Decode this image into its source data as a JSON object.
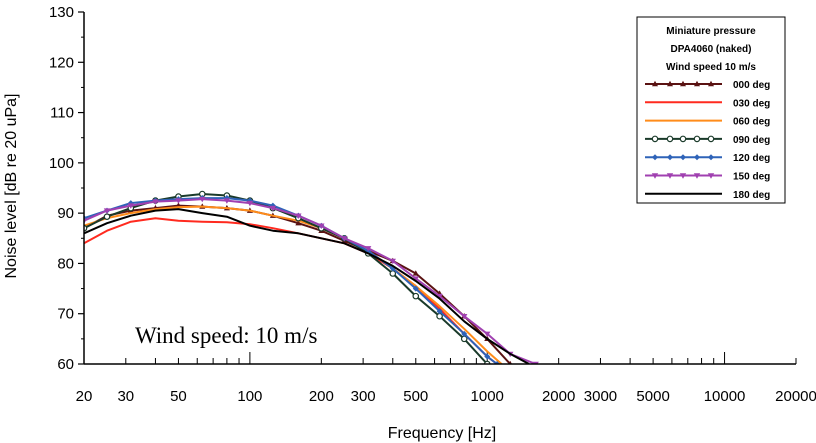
{
  "chart_data": {
    "type": "line",
    "title": "",
    "xlabel": "Frequency [Hz]",
    "ylabel": "Noise level [dB re 20 uPa]",
    "x_scale": "log",
    "xlim": [
      20,
      20000
    ],
    "ylim": [
      60,
      130
    ],
    "x_ticks": [
      20,
      30,
      50,
      100,
      200,
      300,
      500,
      1000,
      2000,
      3000,
      5000,
      10000,
      20000
    ],
    "x_tick_labels": [
      "20",
      "30",
      "50",
      "100",
      "200",
      "300",
      "500",
      "1000",
      "2000",
      "3000",
      "5000",
      "10000",
      "20000"
    ],
    "y_ticks": [
      60,
      70,
      80,
      90,
      100,
      110,
      120,
      130
    ],
    "y_tick_labels": [
      "60",
      "70",
      "80",
      "90",
      "100",
      "110",
      "120",
      "130"
    ],
    "grid": false,
    "legend": {
      "placement": "top-right",
      "title_lines": [
        "Miniature pressure",
        "DPA4060 (naked)",
        "Wind speed 10 m/s"
      ]
    },
    "annotation": "Wind speed: 10 m/s",
    "series": [
      {
        "name": "000 deg",
        "color": "#5a1212",
        "marker": "triangle",
        "x": [
          20,
          25,
          31.5,
          40,
          50,
          63,
          80,
          100,
          125,
          160,
          200,
          250,
          315,
          400,
          500,
          630,
          800,
          1000,
          1250
        ],
        "y": [
          87,
          89.5,
          90.5,
          91,
          91.5,
          91.3,
          91,
          90.5,
          89.5,
          88,
          86.5,
          84.5,
          82.5,
          80.5,
          78,
          74,
          69.5,
          65,
          60
        ]
      },
      {
        "name": "030 deg",
        "color": "#ff2a1f",
        "marker": "none",
        "x": [
          20,
          25,
          31.5,
          40,
          50,
          63,
          80,
          100,
          125,
          160,
          200,
          250,
          315,
          400,
          500,
          630,
          800,
          1000,
          1100
        ],
        "y": [
          84,
          86.5,
          88.3,
          89,
          88.5,
          88.3,
          88.2,
          87.8,
          87,
          86,
          85,
          84,
          82,
          79,
          75.5,
          71,
          66,
          61.5,
          60
        ]
      },
      {
        "name": "060 deg",
        "color": "#ff8c1a",
        "marker": "none",
        "x": [
          20,
          25,
          31.5,
          40,
          50,
          63,
          80,
          100,
          125,
          160,
          200,
          250,
          315,
          400,
          500,
          630,
          800,
          1000,
          1150
        ],
        "y": [
          87.5,
          89,
          90,
          90.8,
          91.2,
          91.3,
          91,
          90.5,
          89.5,
          88.5,
          87,
          85,
          82.5,
          79,
          75.5,
          71.5,
          67,
          62.5,
          60
        ]
      },
      {
        "name": "090 deg",
        "color": "#1a3a2a",
        "marker": "circle",
        "x": [
          20,
          25,
          31.5,
          40,
          50,
          63,
          80,
          100,
          125,
          160,
          200,
          250,
          315,
          400,
          500,
          630,
          800,
          1000
        ],
        "y": [
          87,
          89.3,
          91,
          92.5,
          93.3,
          93.8,
          93.5,
          92.5,
          91,
          89,
          87,
          85,
          82,
          78,
          73.5,
          69.5,
          65,
          60
        ]
      },
      {
        "name": "120 deg",
        "color": "#2f63b8",
        "marker": "diamond",
        "x": [
          20,
          25,
          31.5,
          40,
          50,
          63,
          80,
          100,
          125,
          160,
          200,
          250,
          315,
          400,
          500,
          630,
          800,
          1000,
          1100
        ],
        "y": [
          89,
          90.5,
          92,
          92.5,
          92.8,
          93,
          93,
          92.5,
          91.5,
          89.5,
          87.5,
          85,
          82.5,
          79,
          75,
          70.5,
          66,
          61.5,
          60
        ]
      },
      {
        "name": "150 deg",
        "color": "#a040b0",
        "marker": "triangle-down",
        "x": [
          20,
          25,
          31.5,
          40,
          50,
          63,
          80,
          100,
          125,
          160,
          200,
          250,
          315,
          400,
          500,
          630,
          800,
          1000,
          1250,
          1600
        ],
        "y": [
          88.5,
          90.5,
          91.5,
          92.3,
          92.5,
          92.8,
          92.5,
          92,
          91,
          89.5,
          87.5,
          85,
          83,
          80.5,
          77,
          73.5,
          69.5,
          66,
          62,
          60
        ]
      },
      {
        "name": "180 deg",
        "color": "#000000",
        "marker": "none",
        "x": [
          20,
          25,
          31.5,
          40,
          50,
          63,
          80,
          100,
          125,
          160,
          200,
          250,
          315,
          400,
          500,
          630,
          800,
          1000,
          1250,
          1500
        ],
        "y": [
          86,
          88,
          89.5,
          90.5,
          90.8,
          90,
          89.3,
          87.5,
          86.5,
          86,
          85,
          84,
          82,
          79.5,
          76.5,
          73,
          68.5,
          65,
          62,
          60
        ]
      }
    ]
  }
}
